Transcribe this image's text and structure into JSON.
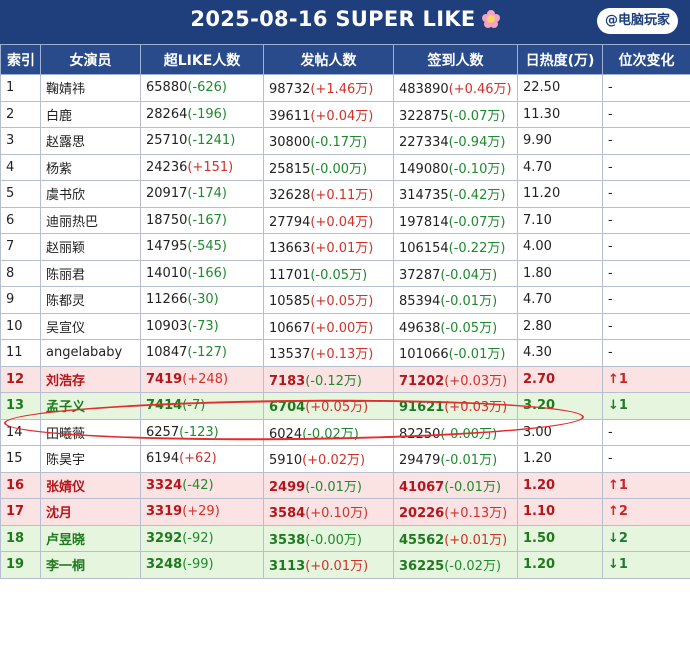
{
  "header": {
    "title": "2025-08-16 SUPER LIKE",
    "icon": "cherry-blossom-icon",
    "brand": "@电脑玩家"
  },
  "table": {
    "headers": [
      "索引",
      "女演员",
      "超LIKE人数",
      "发帖人数",
      "签到人数",
      "日热度(万)",
      "位次变化"
    ],
    "rows": [
      {
        "idx": "1",
        "name": "鞠婧祎",
        "like": "65880",
        "like_d": "(-626)",
        "like_s": "neg",
        "post": "98732",
        "post_d": "(+1.46万)",
        "post_s": "pos",
        "sign": "483890",
        "sign_d": "(+0.46万)",
        "sign_s": "pos",
        "heat": "22.50",
        "change": "-",
        "style": "plain"
      },
      {
        "idx": "2",
        "name": "白鹿",
        "like": "28264",
        "like_d": "(-196)",
        "like_s": "neg",
        "post": "39611",
        "post_d": "(+0.04万)",
        "post_s": "pos",
        "sign": "322875",
        "sign_d": "(-0.07万)",
        "sign_s": "neg",
        "heat": "11.30",
        "change": "-",
        "style": "plain"
      },
      {
        "idx": "3",
        "name": "赵露思",
        "like": "25710",
        "like_d": "(-1241)",
        "like_s": "neg",
        "post": "30800",
        "post_d": "(-0.17万)",
        "post_s": "neg",
        "sign": "227334",
        "sign_d": "(-0.94万)",
        "sign_s": "neg",
        "heat": "9.90",
        "change": "-",
        "style": "plain"
      },
      {
        "idx": "4",
        "name": "杨紫",
        "like": "24236",
        "like_d": "(+151)",
        "like_s": "pos",
        "post": "25815",
        "post_d": "(-0.00万)",
        "post_s": "neg",
        "sign": "149080",
        "sign_d": "(-0.10万)",
        "sign_s": "neg",
        "heat": "4.70",
        "change": "-",
        "style": "plain"
      },
      {
        "idx": "5",
        "name": "虞书欣",
        "like": "20917",
        "like_d": "(-174)",
        "like_s": "neg",
        "post": "32628",
        "post_d": "(+0.11万)",
        "post_s": "pos",
        "sign": "314735",
        "sign_d": "(-0.42万)",
        "sign_s": "neg",
        "heat": "11.20",
        "change": "-",
        "style": "plain"
      },
      {
        "idx": "6",
        "name": "迪丽热巴",
        "like": "18750",
        "like_d": "(-167)",
        "like_s": "neg",
        "post": "27794",
        "post_d": "(+0.04万)",
        "post_s": "pos",
        "sign": "197814",
        "sign_d": "(-0.07万)",
        "sign_s": "neg",
        "heat": "7.10",
        "change": "-",
        "style": "plain"
      },
      {
        "idx": "7",
        "name": "赵丽颖",
        "like": "14795",
        "like_d": "(-545)",
        "like_s": "neg",
        "post": "13663",
        "post_d": "(+0.01万)",
        "post_s": "pos",
        "sign": "106154",
        "sign_d": "(-0.22万)",
        "sign_s": "neg",
        "heat": "4.00",
        "change": "-",
        "style": "plain"
      },
      {
        "idx": "8",
        "name": "陈丽君",
        "like": "14010",
        "like_d": "(-166)",
        "like_s": "neg",
        "post": "11701",
        "post_d": "(-0.05万)",
        "post_s": "neg",
        "sign": "37287",
        "sign_d": "(-0.04万)",
        "sign_s": "neg",
        "heat": "1.80",
        "change": "-",
        "style": "plain"
      },
      {
        "idx": "9",
        "name": "陈都灵",
        "like": "11266",
        "like_d": "(-30)",
        "like_s": "neg",
        "post": "10585",
        "post_d": "(+0.05万)",
        "post_s": "pos",
        "sign": "85394",
        "sign_d": "(-0.01万)",
        "sign_s": "neg",
        "heat": "4.70",
        "change": "-",
        "style": "plain"
      },
      {
        "idx": "10",
        "name": "吴宣仪",
        "like": "10903",
        "like_d": "(-73)",
        "like_s": "neg",
        "post": "10667",
        "post_d": "(+0.00万)",
        "post_s": "pos",
        "sign": "49638",
        "sign_d": "(-0.05万)",
        "sign_s": "neg",
        "heat": "2.80",
        "change": "-",
        "style": "plain"
      },
      {
        "idx": "11",
        "name": "angelababy",
        "like": "10847",
        "like_d": "(-127)",
        "like_s": "neg",
        "post": "13537",
        "post_d": "(+0.13万)",
        "post_s": "pos",
        "sign": "101066",
        "sign_d": "(-0.01万)",
        "sign_s": "neg",
        "heat": "4.30",
        "change": "-",
        "style": "plain"
      },
      {
        "idx": "12",
        "name": "刘浩存",
        "like": "7419",
        "like_d": "(+248)",
        "like_s": "pos",
        "post": "7183",
        "post_d": "(-0.12万)",
        "post_s": "neg",
        "sign": "71202",
        "sign_d": "(+0.03万)",
        "sign_s": "pos",
        "heat": "2.70",
        "change": "↑1",
        "style": "red"
      },
      {
        "idx": "13",
        "name": "孟子义",
        "like": "7414",
        "like_d": "(-7)",
        "like_s": "neg",
        "post": "6704",
        "post_d": "(+0.05万)",
        "post_s": "pos",
        "sign": "91621",
        "sign_d": "(+0.03万)",
        "sign_s": "pos",
        "heat": "3.20",
        "change": "↓1",
        "style": "green"
      },
      {
        "idx": "14",
        "name": "田曦薇",
        "like": "6257",
        "like_d": "(-123)",
        "like_s": "neg",
        "post": "6024",
        "post_d": "(-0.02万)",
        "post_s": "neg",
        "sign": "82250",
        "sign_d": "(-0.00万)",
        "sign_s": "neg",
        "heat": "3.00",
        "change": "-",
        "style": "plain"
      },
      {
        "idx": "15",
        "name": "陈昊宇",
        "like": "6194",
        "like_d": "(+62)",
        "like_s": "pos",
        "post": "5910",
        "post_d": "(+0.02万)",
        "post_s": "pos",
        "sign": "29479",
        "sign_d": "(-0.01万)",
        "sign_s": "neg",
        "heat": "1.20",
        "change": "-",
        "style": "plain"
      },
      {
        "idx": "16",
        "name": "张婧仪",
        "like": "3324",
        "like_d": "(-42)",
        "like_s": "neg",
        "post": "2499",
        "post_d": "(-0.01万)",
        "post_s": "neg",
        "sign": "41067",
        "sign_d": "(-0.01万)",
        "sign_s": "neg",
        "heat": "1.20",
        "change": "↑1",
        "style": "red"
      },
      {
        "idx": "17",
        "name": "沈月",
        "like": "3319",
        "like_d": "(+29)",
        "like_s": "pos",
        "post": "3584",
        "post_d": "(+0.10万)",
        "post_s": "pos",
        "sign": "20226",
        "sign_d": "(+0.13万)",
        "sign_s": "pos",
        "heat": "1.10",
        "change": "↑2",
        "style": "red"
      },
      {
        "idx": "18",
        "name": "卢昱晓",
        "like": "3292",
        "like_d": "(-92)",
        "like_s": "neg",
        "post": "3538",
        "post_d": "(-0.00万)",
        "post_s": "neg",
        "sign": "45562",
        "sign_d": "(+0.01万)",
        "sign_s": "pos",
        "heat": "1.50",
        "change": "↓2",
        "style": "green"
      },
      {
        "idx": "19",
        "name": "李一桐",
        "like": "3248",
        "like_d": "(-99)",
        "like_s": "neg",
        "post": "3113",
        "post_d": "(+0.01万)",
        "post_s": "pos",
        "sign": "36225",
        "sign_d": "(-0.02万)",
        "sign_s": "neg",
        "heat": "1.20",
        "change": "↓1",
        "style": "green"
      }
    ]
  },
  "colors": {
    "header_bg": "#1f3e7c",
    "rise_row_bg": "#fbe3e3",
    "fall_row_bg": "#e6f5de",
    "positive": "#d2302b",
    "negative": "#1e8a2e",
    "annotation": "#e62b2b"
  }
}
